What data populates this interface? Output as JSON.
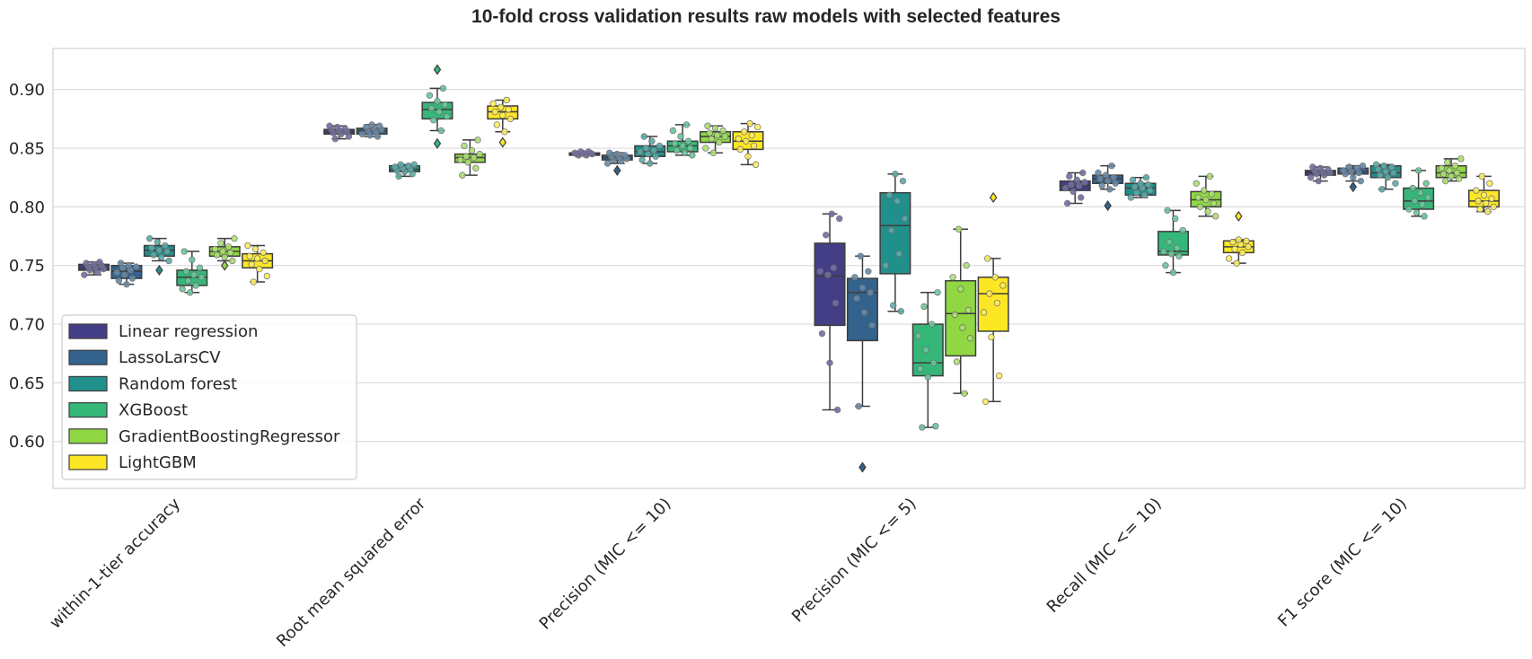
{
  "chart_data": {
    "type": "box",
    "title": "10-fold cross validation results raw models with selected features",
    "xlabel": "",
    "ylabel": "",
    "ylim": [
      0.56,
      0.935
    ],
    "yticks": [
      0.6,
      0.65,
      0.7,
      0.75,
      0.8,
      0.85,
      0.9
    ],
    "ytick_labels": [
      "0.60",
      "0.65",
      "0.70",
      "0.75",
      "0.80",
      "0.85",
      "0.90"
    ],
    "grid": true,
    "legend_position": "lower-left",
    "categories": [
      "within-1-tier accuracy",
      "Root mean squared error",
      "Precision (MIC <= 10)",
      "Precision (MIC <= 5)",
      "Recall (MIC <= 10)",
      "F1 score (MIC <= 10)"
    ],
    "series": [
      {
        "name": "Linear regression",
        "color": "#433e85",
        "boxes": [
          {
            "q1": 0.746,
            "median": 0.748,
            "q3": 0.751,
            "whislo": 0.742,
            "whishi": 0.753,
            "fliers": [],
            "points": [
              0.742,
              0.744,
              0.746,
              0.747,
              0.748,
              0.749,
              0.75,
              0.751,
              0.752,
              0.753
            ]
          },
          {
            "q1": 0.862,
            "median": 0.864,
            "q3": 0.866,
            "whislo": 0.858,
            "whishi": 0.869,
            "fliers": [],
            "points": [
              0.858,
              0.86,
              0.862,
              0.863,
              0.864,
              0.865,
              0.866,
              0.867,
              0.868,
              0.869
            ]
          },
          {
            "q1": 0.844,
            "median": 0.845,
            "q3": 0.846,
            "whislo": 0.844,
            "whishi": 0.847,
            "fliers": [],
            "points": [
              0.844,
              0.844,
              0.845,
              0.845,
              0.845,
              0.846,
              0.846,
              0.846,
              0.847,
              0.847
            ]
          },
          {
            "q1": 0.699,
            "median": 0.741,
            "q3": 0.769,
            "whislo": 0.627,
            "whishi": 0.794,
            "fliers": [],
            "points": [
              0.627,
              0.667,
              0.692,
              0.718,
              0.742,
              0.745,
              0.748,
              0.776,
              0.79,
              0.794
            ]
          },
          {
            "q1": 0.814,
            "median": 0.818,
            "q3": 0.822,
            "whislo": 0.803,
            "whishi": 0.829,
            "fliers": [],
            "points": [
              0.803,
              0.808,
              0.813,
              0.816,
              0.818,
              0.819,
              0.821,
              0.823,
              0.826,
              0.829
            ]
          },
          {
            "q1": 0.827,
            "median": 0.829,
            "q3": 0.831,
            "whislo": 0.822,
            "whishi": 0.834,
            "fliers": [],
            "points": [
              0.822,
              0.825,
              0.827,
              0.828,
              0.829,
              0.83,
              0.831,
              0.832,
              0.833,
              0.834
            ]
          }
        ]
      },
      {
        "name": "LassoLarsCV",
        "color": "#33638d",
        "boxes": [
          {
            "q1": 0.739,
            "median": 0.745,
            "q3": 0.75,
            "whislo": 0.734,
            "whishi": 0.752,
            "fliers": [],
            "points": [
              0.734,
              0.737,
              0.739,
              0.742,
              0.744,
              0.746,
              0.748,
              0.749,
              0.75,
              0.752
            ]
          },
          {
            "q1": 0.862,
            "median": 0.865,
            "q3": 0.867,
            "whislo": 0.86,
            "whishi": 0.87,
            "fliers": [],
            "points": [
              0.86,
              0.861,
              0.862,
              0.864,
              0.865,
              0.866,
              0.867,
              0.868,
              0.869,
              0.87
            ]
          },
          {
            "q1": 0.84,
            "median": 0.842,
            "q3": 0.844,
            "whislo": 0.837,
            "whishi": 0.846,
            "fliers": [
              0.831
            ],
            "points": [
              0.837,
              0.839,
              0.84,
              0.841,
              0.842,
              0.843,
              0.844,
              0.845,
              0.846
            ]
          },
          {
            "q1": 0.686,
            "median": 0.727,
            "q3": 0.739,
            "whislo": 0.63,
            "whishi": 0.758,
            "fliers": [
              0.578
            ],
            "points": [
              0.63,
              0.699,
              0.71,
              0.722,
              0.727,
              0.731,
              0.74,
              0.745,
              0.758
            ]
          },
          {
            "q1": 0.82,
            "median": 0.824,
            "q3": 0.827,
            "whislo": 0.815,
            "whishi": 0.835,
            "fliers": [
              0.801
            ],
            "points": [
              0.815,
              0.818,
              0.82,
              0.822,
              0.824,
              0.825,
              0.827,
              0.829,
              0.835
            ]
          },
          {
            "q1": 0.828,
            "median": 0.83,
            "q3": 0.833,
            "whislo": 0.822,
            "whishi": 0.835,
            "fliers": [
              0.817
            ],
            "points": [
              0.822,
              0.825,
              0.828,
              0.829,
              0.83,
              0.831,
              0.833,
              0.834,
              0.835
            ]
          }
        ]
      },
      {
        "name": "Random forest",
        "color": "#21908d",
        "boxes": [
          {
            "q1": 0.758,
            "median": 0.763,
            "q3": 0.767,
            "whislo": 0.754,
            "whishi": 0.773,
            "fliers": [
              0.746
            ],
            "points": [
              0.754,
              0.757,
              0.759,
              0.762,
              0.763,
              0.765,
              0.767,
              0.77,
              0.773
            ]
          },
          {
            "q1": 0.83,
            "median": 0.832,
            "q3": 0.835,
            "whislo": 0.826,
            "whishi": 0.836,
            "fliers": [],
            "points": [
              0.826,
              0.828,
              0.83,
              0.831,
              0.832,
              0.833,
              0.834,
              0.835,
              0.836,
              0.836
            ]
          },
          {
            "q1": 0.843,
            "median": 0.847,
            "q3": 0.852,
            "whislo": 0.837,
            "whishi": 0.86,
            "fliers": [],
            "points": [
              0.837,
              0.84,
              0.843,
              0.845,
              0.847,
              0.848,
              0.85,
              0.852,
              0.856,
              0.86
            ]
          },
          {
            "q1": 0.743,
            "median": 0.784,
            "q3": 0.812,
            "whislo": 0.711,
            "whishi": 0.828,
            "fliers": [],
            "points": [
              0.711,
              0.716,
              0.75,
              0.76,
              0.78,
              0.79,
              0.805,
              0.81,
              0.822,
              0.828
            ]
          },
          {
            "q1": 0.81,
            "median": 0.816,
            "q3": 0.82,
            "whislo": 0.808,
            "whishi": 0.825,
            "fliers": [],
            "points": [
              0.808,
              0.81,
              0.812,
              0.814,
              0.816,
              0.817,
              0.819,
              0.82,
              0.823,
              0.825
            ]
          },
          {
            "q1": 0.825,
            "median": 0.829,
            "q3": 0.835,
            "whislo": 0.815,
            "whishi": 0.836,
            "fliers": [],
            "points": [
              0.815,
              0.82,
              0.825,
              0.827,
              0.829,
              0.83,
              0.832,
              0.834,
              0.835,
              0.836
            ]
          }
        ]
      },
      {
        "name": "XGBoost",
        "color": "#35b779",
        "boxes": [
          {
            "q1": 0.733,
            "median": 0.74,
            "q3": 0.746,
            "whislo": 0.727,
            "whishi": 0.762,
            "fliers": [],
            "points": [
              0.727,
              0.73,
              0.733,
              0.737,
              0.74,
              0.742,
              0.745,
              0.748,
              0.755,
              0.762
            ]
          },
          {
            "q1": 0.875,
            "median": 0.883,
            "q3": 0.889,
            "whislo": 0.865,
            "whishi": 0.901,
            "fliers": [
              0.917,
              0.854
            ],
            "points": [
              0.865,
              0.874,
              0.877,
              0.881,
              0.884,
              0.887,
              0.89,
              0.895,
              0.901
            ]
          },
          {
            "q1": 0.847,
            "median": 0.852,
            "q3": 0.856,
            "whislo": 0.844,
            "whishi": 0.87,
            "fliers": [],
            "points": [
              0.844,
              0.846,
              0.848,
              0.85,
              0.852,
              0.854,
              0.856,
              0.86,
              0.865,
              0.87
            ]
          },
          {
            "q1": 0.656,
            "median": 0.667,
            "q3": 0.7,
            "whislo": 0.612,
            "whishi": 0.727,
            "fliers": [],
            "points": [
              0.612,
              0.613,
              0.655,
              0.662,
              0.667,
              0.678,
              0.69,
              0.7,
              0.715,
              0.727
            ]
          },
          {
            "q1": 0.759,
            "median": 0.762,
            "q3": 0.779,
            "whislo": 0.744,
            "whishi": 0.797,
            "fliers": [],
            "points": [
              0.744,
              0.75,
              0.758,
              0.76,
              0.762,
              0.765,
              0.77,
              0.78,
              0.79,
              0.797
            ]
          },
          {
            "q1": 0.798,
            "median": 0.805,
            "q3": 0.816,
            "whislo": 0.792,
            "whishi": 0.831,
            "fliers": [],
            "points": [
              0.792,
              0.795,
              0.798,
              0.802,
              0.805,
              0.808,
              0.812,
              0.816,
              0.82,
              0.831
            ]
          }
        ]
      },
      {
        "name": "GradientBoostingRegressor",
        "color": "#90d743",
        "boxes": [
          {
            "q1": 0.758,
            "median": 0.762,
            "q3": 0.766,
            "whislo": 0.754,
            "whishi": 0.773,
            "fliers": [
              0.75
            ],
            "points": [
              0.754,
              0.757,
              0.759,
              0.761,
              0.762,
              0.764,
              0.766,
              0.769,
              0.773
            ]
          },
          {
            "q1": 0.838,
            "median": 0.842,
            "q3": 0.845,
            "whislo": 0.827,
            "whishi": 0.857,
            "fliers": [],
            "points": [
              0.827,
              0.833,
              0.838,
              0.84,
              0.842,
              0.843,
              0.845,
              0.848,
              0.852,
              0.857
            ]
          },
          {
            "q1": 0.855,
            "median": 0.86,
            "q3": 0.864,
            "whislo": 0.846,
            "whishi": 0.869,
            "fliers": [],
            "points": [
              0.846,
              0.85,
              0.855,
              0.858,
              0.86,
              0.861,
              0.863,
              0.865,
              0.867,
              0.869
            ]
          },
          {
            "q1": 0.673,
            "median": 0.709,
            "q3": 0.737,
            "whislo": 0.641,
            "whishi": 0.781,
            "fliers": [],
            "points": [
              0.641,
              0.668,
              0.688,
              0.697,
              0.708,
              0.712,
              0.73,
              0.74,
              0.75,
              0.781
            ]
          },
          {
            "q1": 0.8,
            "median": 0.806,
            "q3": 0.813,
            "whislo": 0.792,
            "whishi": 0.826,
            "fliers": [],
            "points": [
              0.792,
              0.796,
              0.8,
              0.803,
              0.806,
              0.808,
              0.811,
              0.814,
              0.82,
              0.826
            ]
          },
          {
            "q1": 0.825,
            "median": 0.829,
            "q3": 0.835,
            "whislo": 0.822,
            "whishi": 0.841,
            "fliers": [],
            "points": [
              0.822,
              0.824,
              0.826,
              0.828,
              0.829,
              0.831,
              0.833,
              0.835,
              0.838,
              0.841
            ]
          }
        ]
      },
      {
        "name": "LightGBM",
        "color": "#fde725",
        "boxes": [
          {
            "q1": 0.748,
            "median": 0.754,
            "q3": 0.76,
            "whislo": 0.736,
            "whishi": 0.767,
            "fliers": [],
            "points": [
              0.736,
              0.741,
              0.747,
              0.751,
              0.754,
              0.756,
              0.758,
              0.761,
              0.764,
              0.767
            ]
          },
          {
            "q1": 0.875,
            "median": 0.881,
            "q3": 0.886,
            "whislo": 0.864,
            "whishi": 0.891,
            "fliers": [
              0.855
            ],
            "points": [
              0.864,
              0.87,
              0.875,
              0.878,
              0.881,
              0.883,
              0.885,
              0.888,
              0.891
            ]
          },
          {
            "q1": 0.849,
            "median": 0.856,
            "q3": 0.864,
            "whislo": 0.836,
            "whishi": 0.871,
            "fliers": [],
            "points": [
              0.836,
              0.843,
              0.849,
              0.852,
              0.856,
              0.858,
              0.861,
              0.864,
              0.868,
              0.871
            ]
          },
          {
            "q1": 0.694,
            "median": 0.726,
            "q3": 0.74,
            "whislo": 0.634,
            "whishi": 0.756,
            "fliers": [
              0.808
            ],
            "points": [
              0.634,
              0.656,
              0.689,
              0.71,
              0.718,
              0.726,
              0.733,
              0.74,
              0.756
            ]
          },
          {
            "q1": 0.761,
            "median": 0.766,
            "q3": 0.771,
            "whislo": 0.752,
            "whishi": 0.772,
            "fliers": [
              0.792
            ],
            "points": [
              0.752,
              0.756,
              0.761,
              0.764,
              0.766,
              0.768,
              0.77,
              0.771,
              0.772
            ]
          },
          {
            "q1": 0.8,
            "median": 0.805,
            "q3": 0.814,
            "whislo": 0.796,
            "whishi": 0.826,
            "fliers": [],
            "points": [
              0.796,
              0.798,
              0.8,
              0.803,
              0.805,
              0.807,
              0.81,
              0.814,
              0.82,
              0.826
            ]
          }
        ]
      }
    ]
  }
}
